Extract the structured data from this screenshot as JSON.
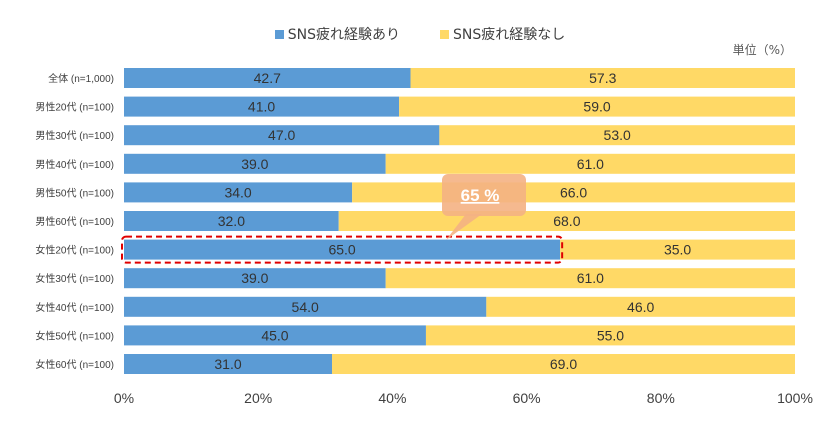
{
  "chart_data": {
    "type": "bar",
    "orientation": "horizontal",
    "stacked": true,
    "unit_label": "単位（%）",
    "categories": [
      "全体 (n=1,000)",
      "男性20代 (n=100)",
      "男性30代 (n=100)",
      "男性40代 (n=100)",
      "男性50代 (n=100)",
      "男性60代 (n=100)",
      "女性20代 (n=100)",
      "女性30代 (n=100)",
      "女性40代 (n=100)",
      "女性50代 (n=100)",
      "女性60代 (n=100)"
    ],
    "series": [
      {
        "name": "SNS疲れ経験あり",
        "color": "#5b9bd5",
        "values": [
          42.7,
          41.0,
          47.0,
          39.0,
          34.0,
          32.0,
          65.0,
          39.0,
          54.0,
          45.0,
          31.0
        ],
        "labels": [
          "42.7",
          "41.0",
          "47.0",
          "39.0",
          "34.0",
          "32.0",
          "65.0",
          "39.0",
          "54.0",
          "45.0",
          "31.0"
        ]
      },
      {
        "name": "SNS疲れ経験なし",
        "color": "#ffd966",
        "values": [
          57.3,
          59.0,
          53.0,
          61.0,
          66.0,
          68.0,
          35.0,
          61.0,
          46.0,
          55.0,
          69.0
        ],
        "labels": [
          "57.3",
          "59.0",
          "53.0",
          "61.0",
          "66.0",
          "68.0",
          "35.0",
          "61.0",
          "46.0",
          "55.0",
          "69.0"
        ]
      }
    ],
    "x_ticks": [
      "0%",
      "20%",
      "40%",
      "60%",
      "80%",
      "100%"
    ],
    "xlim": [
      0,
      100
    ],
    "legend_position": "top-center",
    "grid": false,
    "highlight": {
      "category": "女性20代 (n=100)",
      "callout_text": "65 %",
      "callout_color": "#f4b183",
      "border_color": "#e00000"
    }
  }
}
